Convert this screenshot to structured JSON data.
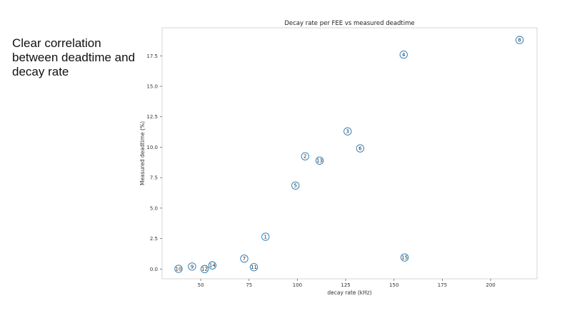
{
  "slide": {
    "annotation": "Clear correlation between deadtime and decay rate"
  },
  "chart_data": {
    "type": "scatter",
    "title": "Decay rate per FEE vs measured deadtime",
    "xlabel": "decay rate (kHz)",
    "ylabel": "Measured deadtime (%)",
    "xlim": [
      30,
      224
    ],
    "ylim": [
      -0.8,
      19.8
    ],
    "xticks": [
      50,
      75,
      100,
      125,
      150,
      175,
      200
    ],
    "yticks": [
      0.0,
      2.5,
      5.0,
      7.5,
      10.0,
      12.5,
      15.0,
      17.5
    ],
    "grid": false,
    "marker_color": "#1f77b4",
    "points": [
      {
        "label": "10",
        "x": 38.5,
        "y": 0.02
      },
      {
        "label": "9",
        "x": 45.5,
        "y": 0.2
      },
      {
        "label": "12",
        "x": 52.0,
        "y": 0.0
      },
      {
        "label": "14",
        "x": 56.0,
        "y": 0.3
      },
      {
        "label": "7",
        "x": 72.5,
        "y": 0.85
      },
      {
        "label": "11",
        "x": 77.5,
        "y": 0.15
      },
      {
        "label": "1",
        "x": 83.5,
        "y": 2.65
      },
      {
        "label": "5",
        "x": 99.0,
        "y": 6.85
      },
      {
        "label": "2",
        "x": 104.0,
        "y": 9.25
      },
      {
        "label": "13",
        "x": 111.5,
        "y": 8.9
      },
      {
        "label": "3",
        "x": 126.0,
        "y": 11.3
      },
      {
        "label": "6",
        "x": 132.5,
        "y": 9.9
      },
      {
        "label": "4",
        "x": 155.0,
        "y": 17.6
      },
      {
        "label": "15",
        "x": 155.5,
        "y": 0.95
      },
      {
        "label": "8",
        "x": 215.0,
        "y": 18.8
      }
    ]
  }
}
